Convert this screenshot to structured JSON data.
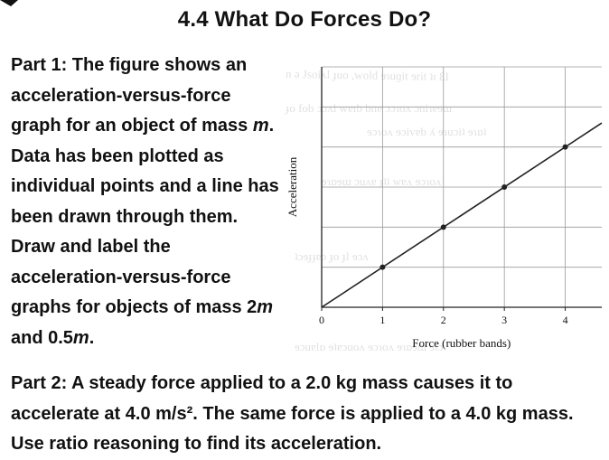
{
  "title": "4.4 What Do Forces Do?",
  "part1": {
    "text_a": "Part 1: The figure shows an acceleration-versus-force graph for an object of mass ",
    "mass_var": "m",
    "text_b": ". Data has been plotted as individual points and a line has been drawn through them. Draw and label the acceleration-versus-force graphs for objects of mass 2",
    "mass_var2": "m",
    "text_c": " and 0.5",
    "mass_var3": "m",
    "text_d": "."
  },
  "part2": {
    "text": "Part 2: A steady force applied to a 2.0 kg mass causes it to accelerate at 4.0 m/s². The same force is applied to a 4.0 kg mass. Use ratio reasoning to find its acceleration."
  },
  "chart_data": {
    "type": "scatter",
    "xlabel": "Force (rubber bands)",
    "ylabel": "Acceleration",
    "x_ticks": [
      "0",
      "1",
      "2",
      "3",
      "4"
    ],
    "xlim": [
      0,
      4.6
    ],
    "ylim": [
      0,
      6
    ],
    "grid": true,
    "series": [
      {
        "points": [
          [
            1,
            1.0
          ],
          [
            2,
            2.0
          ],
          [
            3,
            3.0
          ],
          [
            4,
            4.0
          ]
        ],
        "line": [
          [
            0,
            0
          ],
          [
            4.6,
            4.6
          ]
        ],
        "color": "#222222"
      }
    ]
  }
}
